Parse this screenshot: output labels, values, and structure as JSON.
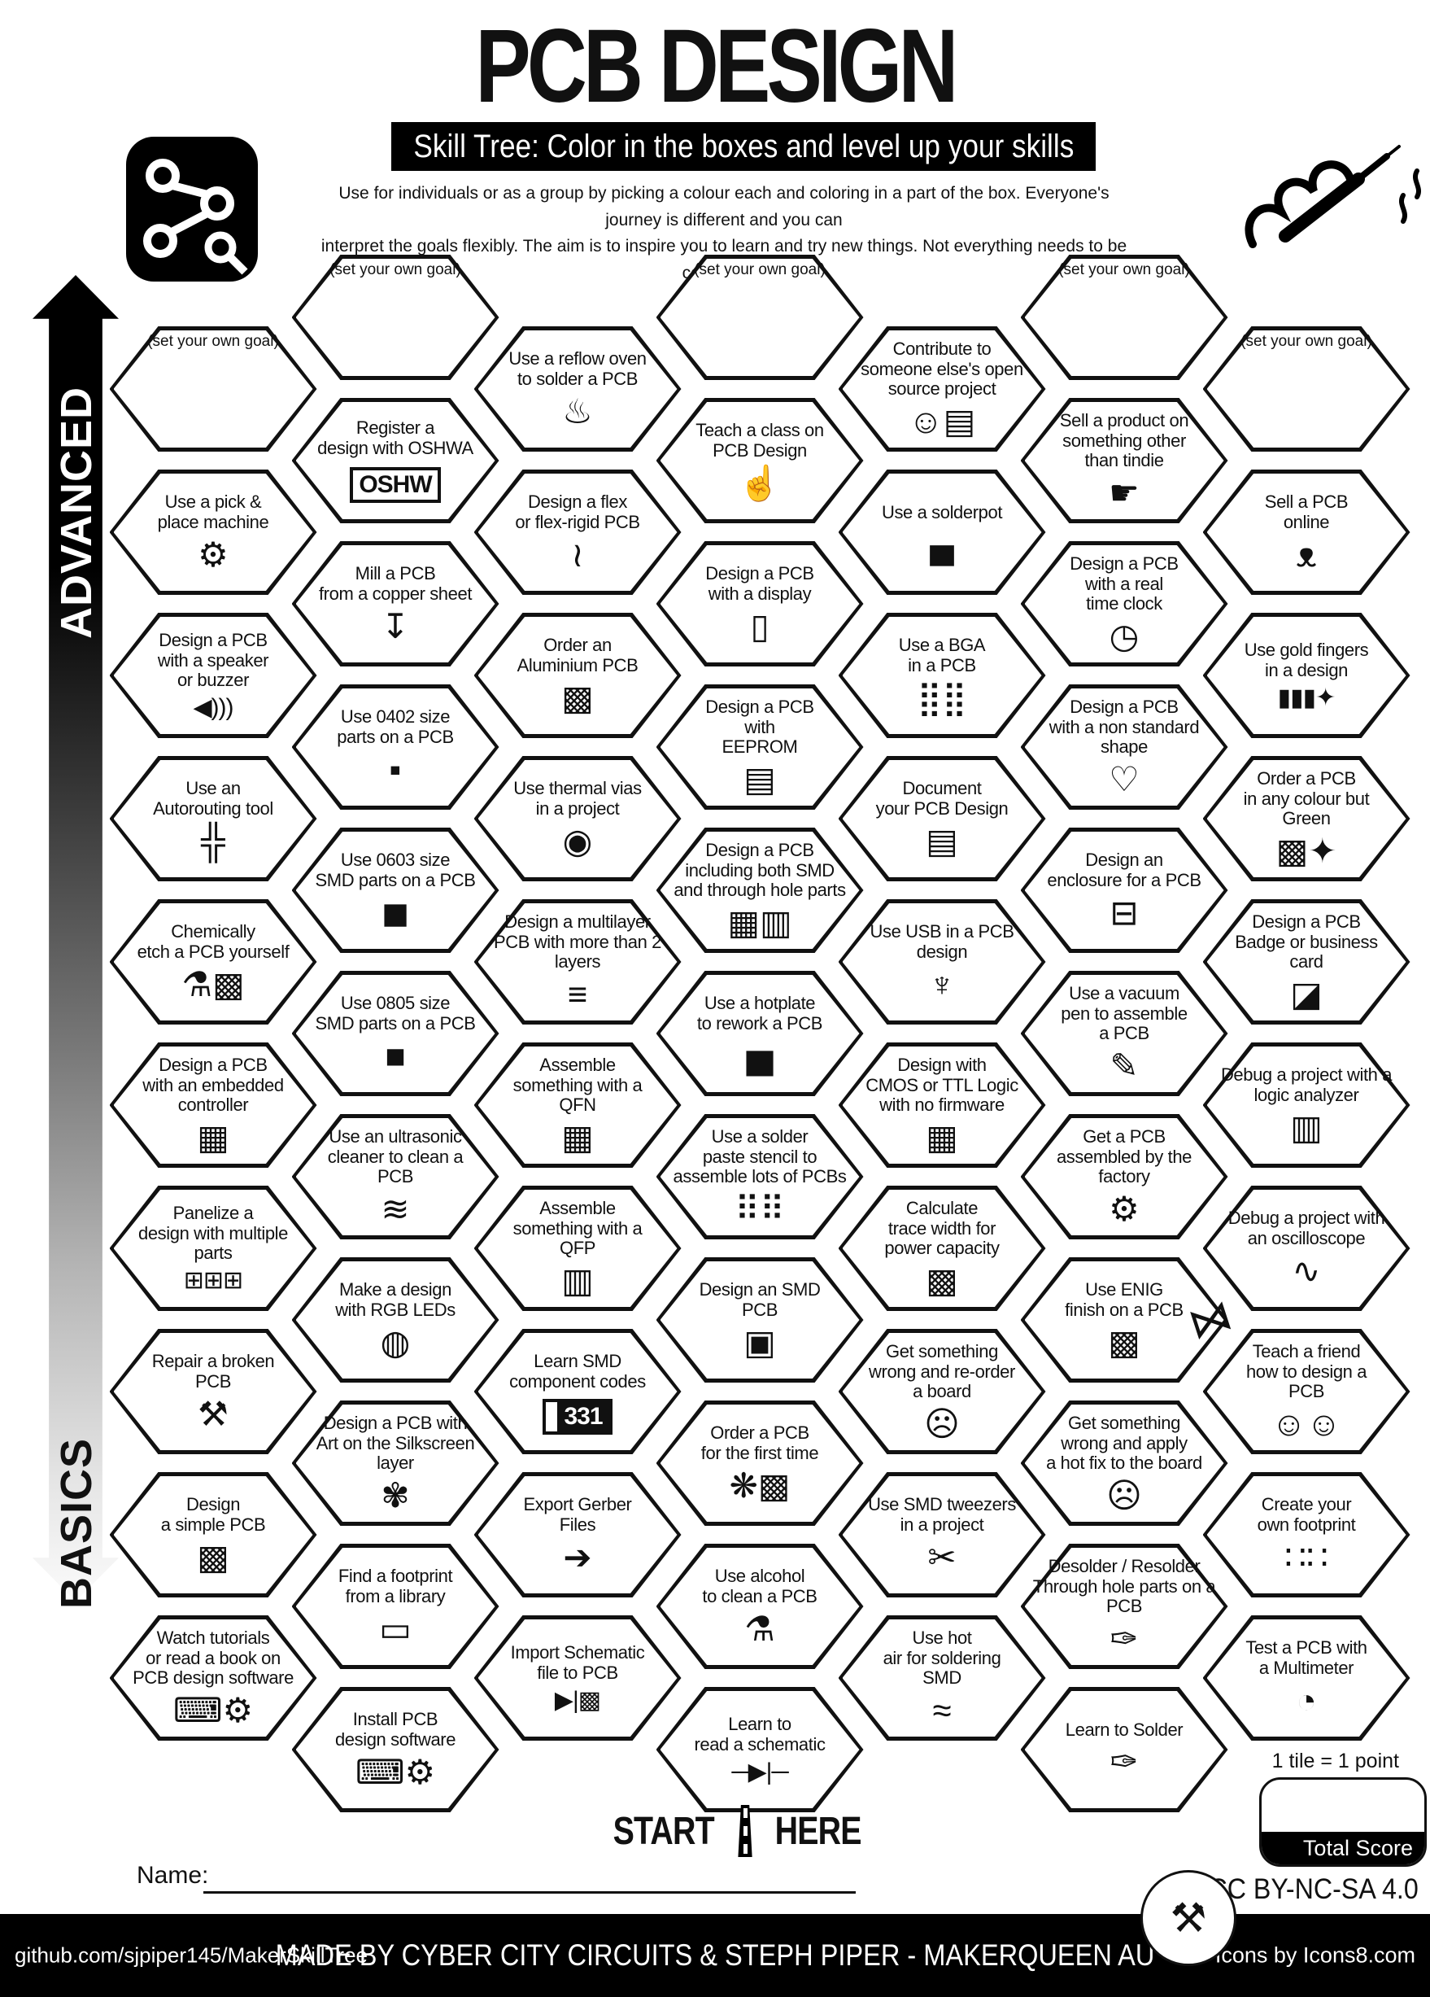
{
  "header": {
    "title": "PCB DESIGN",
    "banner": "Skill Tree:  Color in the boxes and level up your skills",
    "description_line1": "Use for individuals or as a group by picking a colour each and coloring in a part of the box.  Everyone's journey is different and you can",
    "description_line2": "interpret the goals flexibly.  The aim is to inspire you to learn and try new things. Not everything needs to be completed."
  },
  "sidebar": {
    "top_label": "ADVANCED",
    "bottom_label": "BASICS"
  },
  "decorations": {
    "top_left_logo": "pcb-logo-icon",
    "top_right_sketch": "soldering-iron-sketch-icon",
    "bow": "bow-icon",
    "bow_glyph": "⋈",
    "badge": "tools-badge-icon",
    "badge_glyph": "⚒",
    "road": "road-start-icon"
  },
  "grid": {
    "columns": [
      {
        "cells": [
          {
            "goal": true,
            "lines": [
              "(set your own goal)"
            ]
          },
          {
            "lines": [
              "Use a pick &",
              "place machine"
            ],
            "icon": "robot-arm-icon",
            "glyph": "⚙"
          },
          {
            "lines": [
              "Design a PCB",
              "with a speaker",
              "or buzzer"
            ],
            "icon": "speaker-icon",
            "glyph": "◀)))"
          },
          {
            "lines": [
              "Use an",
              "Autorouting tool"
            ],
            "icon": "autorouting-traces-icon",
            "glyph": "╬"
          },
          {
            "lines": [
              "Chemically",
              "etch a PCB yourself"
            ],
            "icon": "flask-pcb-icon",
            "glyph": "⚗▩"
          },
          {
            "lines": [
              "Design a PCB",
              "with an embedded",
              "controller"
            ],
            "icon": "microchip-icon",
            "glyph": "▦"
          },
          {
            "lines": [
              "Panelize a",
              "design with multiple",
              "parts"
            ],
            "icon": "panel-boards-icon",
            "glyph": "⊞⊞⊞"
          },
          {
            "lines": [
              "Repair a broken",
              "PCB"
            ],
            "icon": "wrench-screwdriver-icon",
            "glyph": "⚒"
          },
          {
            "lines": [
              "Design",
              "a simple PCB"
            ],
            "icon": "pcb-icon",
            "glyph": "▩"
          },
          {
            "lines": [
              "Watch tutorials",
              "or read a book on",
              "PCB design software"
            ],
            "icon": "laptop-gear-icon",
            "glyph": "⌨⚙"
          }
        ]
      },
      {
        "cells": [
          {
            "goal": true,
            "lines": [
              "(set your own goal)"
            ]
          },
          {
            "lines": [
              "Register a",
              "design with OSHWA"
            ],
            "icon": "oshw-logo-icon",
            "glyph": "OSHW"
          },
          {
            "lines": [
              "Mill a PCB",
              "from a copper sheet"
            ],
            "icon": "cnc-mill-icon",
            "glyph": "↧"
          },
          {
            "lines": [
              "Use 0402 size",
              "parts on a PCB"
            ],
            "icon": "resistor-0402-icon",
            "glyph": "▪"
          },
          {
            "lines": [
              "Use 0603 size",
              "SMD parts on a PCB"
            ],
            "icon": "resistor-0603-icon",
            "glyph": "◼"
          },
          {
            "lines": [
              "Use 0805 size",
              "SMD parts on a PCB"
            ],
            "icon": "resistor-0805-icon",
            "glyph": "■"
          },
          {
            "lines": [
              "Use an ultrasonic",
              "cleaner to clean a",
              "PCB"
            ],
            "icon": "ultrasonic-waves-icon",
            "glyph": "≋"
          },
          {
            "lines": [
              "Make a design",
              "with RGB LEDs"
            ],
            "icon": "led-icon",
            "glyph": "◍"
          },
          {
            "lines": [
              "Design a PCB with",
              "Art on the Silkscreen",
              "layer"
            ],
            "icon": "paint-palette-icon",
            "glyph": "✾"
          },
          {
            "lines": [
              "Find a footprint",
              "from a library"
            ],
            "icon": "footprint-icon",
            "glyph": "▭"
          },
          {
            "lines": [
              "Install PCB",
              "design software"
            ],
            "icon": "laptop-gear-icon",
            "glyph": "⌨⚙"
          }
        ]
      },
      {
        "cells": [
          {
            "lines": [
              "Use a reflow oven",
              "to solder a PCB"
            ],
            "icon": "reflow-oven-icon",
            "glyph": "♨"
          },
          {
            "lines": [
              "Design a flex",
              "or flex-rigid PCB"
            ],
            "icon": "flex-pcb-icon",
            "glyph": "≀"
          },
          {
            "lines": [
              "Order an",
              "Aluminium PCB"
            ],
            "icon": "pcb-icon",
            "glyph": "▩"
          },
          {
            "lines": [
              "Use thermal vias",
              "in a project"
            ],
            "icon": "thermal-via-icon",
            "glyph": "◉"
          },
          {
            "lines": [
              "Design a multilayer",
              "PCB with more than 2",
              "layers"
            ],
            "icon": "layer-stack-icon",
            "glyph": "≡"
          },
          {
            "lines": [
              "Assemble",
              "something  with a",
              "QFN"
            ],
            "icon": "qfn-chip-icon",
            "glyph": "▦"
          },
          {
            "lines": [
              "Assemble",
              "something  with a",
              "QFP"
            ],
            "icon": "qfp-chip-icon",
            "glyph": "▥"
          },
          {
            "lines": [
              "Learn SMD",
              "component codes"
            ],
            "icon": "smd-code-icon",
            "glyph": "331"
          },
          {
            "lines": [
              "Export Gerber",
              "Files"
            ],
            "icon": "export-arrow-icon",
            "glyph": "➔"
          },
          {
            "lines": [
              "Import Schematic",
              "file to PCB"
            ],
            "icon": "diode-pcb-icon",
            "glyph": "▶|▩"
          }
        ]
      },
      {
        "cells": [
          {
            "goal": true,
            "lines": [
              "(set your own goal)"
            ]
          },
          {
            "lines": [
              "Teach a class on",
              "PCB Design"
            ],
            "icon": "teacher-icon",
            "glyph": "☝"
          },
          {
            "lines": [
              "Design a PCB",
              "with a display"
            ],
            "icon": "display-icon",
            "glyph": "▯"
          },
          {
            "lines": [
              "Design a PCB",
              "with",
              "EEPROM"
            ],
            "icon": "eeprom-chip-icon",
            "glyph": "▤"
          },
          {
            "lines": [
              "Design a PCB",
              "including both SMD",
              "and through hole parts"
            ],
            "icon": "smd-throughhole-chips-icon",
            "glyph": "▦▥"
          },
          {
            "lines": [
              "Use a hotplate",
              "to rework a PCB"
            ],
            "icon": "hotplate-icon",
            "glyph": "▅"
          },
          {
            "lines": [
              "Use a solder",
              "paste stencil to",
              "assemble lots of PCBs"
            ],
            "icon": "paste-stencil-icon",
            "glyph": "⠿⠿"
          },
          {
            "lines": [
              "Design an SMD",
              "PCB"
            ],
            "icon": "smd-resistor-icon",
            "glyph": "▣"
          },
          {
            "lines": [
              "Order a PCB",
              "for the first time"
            ],
            "icon": "party-pcb-icon",
            "glyph": "❋▩"
          },
          {
            "lines": [
              "Use alcohol",
              "to clean a PCB"
            ],
            "icon": "alcohol-bottle-icon",
            "glyph": "⚗"
          },
          {
            "lines": [
              "Learn to",
              "read a schematic"
            ],
            "icon": "diode-symbol-icon",
            "glyph": "─▶|─"
          }
        ]
      },
      {
        "cells": [
          {
            "lines": [
              "Contribute to",
              "someone else's open",
              "source project"
            ],
            "icon": "person-sharing-icon",
            "glyph": "☺▤"
          },
          {
            "lines": [
              "Use a solderpot"
            ],
            "icon": "solderpot-icon",
            "glyph": "▄"
          },
          {
            "lines": [
              "Use a BGA",
              "in a PCB"
            ],
            "icon": "bga-grid-icon",
            "glyph": "⣿⣿"
          },
          {
            "lines": [
              "Document",
              "your PCB Design"
            ],
            "icon": "document-icon",
            "glyph": "▤"
          },
          {
            "lines": [
              "Use USB in a PCB",
              "design"
            ],
            "icon": "usb-symbol-icon",
            "glyph": "♆"
          },
          {
            "lines": [
              "Design with",
              "CMOS or TTL Logic",
              "with no firmware"
            ],
            "icon": "logic-chip-icon",
            "glyph": "▦"
          },
          {
            "lines": [
              "Calculate",
              "trace width for",
              "power capacity"
            ],
            "icon": "pcb-icon",
            "glyph": "▩"
          },
          {
            "lines": [
              "Get something",
              "wrong and re-order",
              "a board"
            ],
            "icon": "facepalm-icon",
            "glyph": "☹"
          },
          {
            "lines": [
              "Use SMD tweezers",
              "in a project"
            ],
            "icon": "tweezers-icon",
            "glyph": "✂"
          },
          {
            "lines": [
              "Use hot",
              "air for soldering",
              "SMD"
            ],
            "icon": "hot-air-gun-icon",
            "glyph": "≈"
          }
        ]
      },
      {
        "cells": [
          {
            "goal": true,
            "lines": [
              "(set your own goal)"
            ]
          },
          {
            "lines": [
              "Sell a product on",
              "something other",
              "than tindie"
            ],
            "icon": "hand-box-icon",
            "glyph": "☛"
          },
          {
            "lines": [
              "Design a PCB",
              "with a real",
              "time clock"
            ],
            "icon": "clock-icon",
            "glyph": "◷"
          },
          {
            "lines": [
              "Design a PCB",
              "with a non standard",
              "shape"
            ],
            "icon": "heart-icon",
            "glyph": "♡"
          },
          {
            "lines": [
              "Design an",
              "enclosure for a PCB"
            ],
            "icon": "enclosure-icon",
            "glyph": "⊟"
          },
          {
            "lines": [
              "Use a vacuum",
              "pen to assemble",
              "a PCB"
            ],
            "icon": "vacuum-pen-icon",
            "glyph": "✎"
          },
          {
            "lines": [
              "Get a PCB",
              "assembled by the",
              "factory"
            ],
            "icon": "robot-arm-icon",
            "glyph": "⚙"
          },
          {
            "lines": [
              "Use ENIG",
              "finish on a PCB"
            ],
            "icon": "pcb-icon",
            "glyph": "▩"
          },
          {
            "lines": [
              "Get something",
              "wrong and apply",
              "a hot fix to the board"
            ],
            "icon": "facepalm-icon",
            "glyph": "☹"
          },
          {
            "lines": [
              "Desolder / Resolder",
              "Through hole parts on a",
              "PCB"
            ],
            "icon": "soldering-iron-icon",
            "glyph": "✑"
          },
          {
            "lines": [
              "Learn to Solder"
            ],
            "icon": "soldering-iron-icon",
            "glyph": "✑"
          }
        ]
      },
      {
        "cells": [
          {
            "goal": true,
            "lines": [
              "(set your own goal)"
            ]
          },
          {
            "lines": [
              "Sell a PCB",
              "online"
            ],
            "icon": "dog-icon",
            "glyph": "ᴥ"
          },
          {
            "lines": [
              "Use gold fingers",
              "in a design"
            ],
            "icon": "gold-fingers-icon",
            "glyph": "▮▮▮✦"
          },
          {
            "lines": [
              "Order a PCB",
              "in any colour but",
              "Green"
            ],
            "icon": "pcb-sparkle-icon",
            "glyph": "▩✦"
          },
          {
            "lines": [
              "Design a PCB",
              "Badge or business",
              "card"
            ],
            "icon": "id-card-icon",
            "glyph": "◪"
          },
          {
            "lines": [
              "Debug a project with a",
              "logic analyzer"
            ],
            "icon": "logic-analyzer-icon",
            "glyph": "▥"
          },
          {
            "lines": [
              "Debug a project with",
              "an oscilloscope"
            ],
            "icon": "oscilloscope-icon",
            "glyph": "∿"
          },
          {
            "lines": [
              "Teach a friend",
              "how to design a",
              "PCB"
            ],
            "icon": "people-icon",
            "glyph": "☺☺"
          },
          {
            "lines": [
              "Create your",
              "own footprint"
            ],
            "icon": "footprint-pads-icon",
            "glyph": "∷∷"
          },
          {
            "lines": [
              "Test a PCB with",
              "a Multimeter"
            ],
            "icon": "multimeter-icon",
            "glyph": "◔"
          }
        ]
      }
    ]
  },
  "bottom": {
    "start_left": "START",
    "start_right": "HERE",
    "name_label": "Name:",
    "tile_note": "1 tile = 1 point",
    "total_score_label": "Total Score",
    "license": "CC BY-NC-SA 4.0"
  },
  "footer": {
    "left": "github.com/sjpiper145/MakerSkillTree",
    "center": "MADE BY CYBER CITY CIRCUITS & STEPH PIPER  -  MAKERQUEEN AU",
    "right": "Icons by Icons8.com"
  }
}
